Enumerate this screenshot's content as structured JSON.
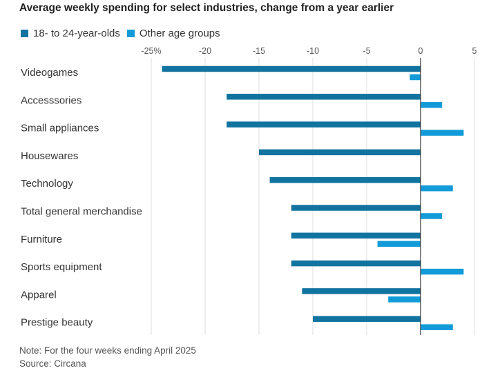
{
  "title": "Average weekly spending for select industries, change from a year earlier",
  "legend": {
    "series1_label": "18- to 24-year-olds",
    "series2_label": "Other age groups"
  },
  "colors": {
    "series1": "#11739f",
    "series2": "#129bd8",
    "grid": "#dddddd",
    "zero_line": "#333333",
    "text": "#333333"
  },
  "chart_data": {
    "type": "bar",
    "orientation": "horizontal",
    "title": "Average weekly spending for select industries, change from a year earlier",
    "categories": [
      "Videogames",
      "Accesssories",
      "Small appliances",
      "Housewares",
      "Technology",
      "Total general merchandise",
      "Furniture",
      "Sports equipment",
      "Apparel",
      "Prestige beauty"
    ],
    "series": [
      {
        "name": "18- to 24-year-olds",
        "values": [
          -24,
          -18,
          -18,
          -15,
          -14,
          -12,
          -12,
          -12,
          -11,
          -10
        ]
      },
      {
        "name": "Other age groups",
        "values": [
          -1,
          2,
          4,
          0,
          3,
          2,
          -4,
          4,
          -3,
          3
        ]
      }
    ],
    "x_ticks": [
      -25,
      -20,
      -15,
      -10,
      -5,
      0,
      5
    ],
    "x_tick_labels": [
      "-25%",
      "-20",
      "-15",
      "-10",
      "-5",
      "0",
      "5"
    ],
    "xlim": [
      -25,
      5
    ],
    "grid": true,
    "legend_position": "top-left"
  },
  "footer": {
    "note": "Note: For the four weeks ending April 2025",
    "source": "Source: Circana"
  }
}
